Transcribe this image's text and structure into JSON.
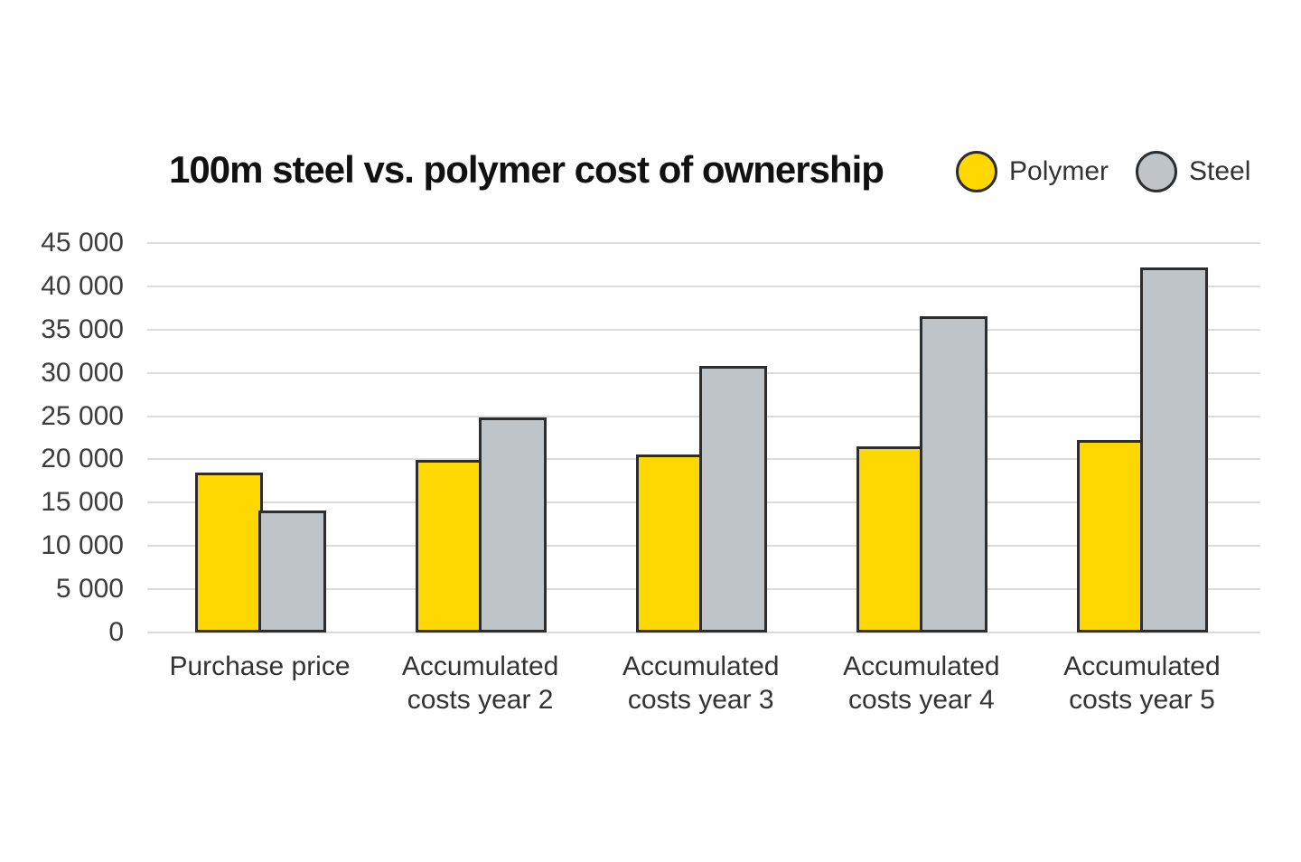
{
  "header": {
    "title": "100m steel vs. polymer cost of ownership"
  },
  "chart_data": {
    "type": "bar",
    "title": "100m steel vs. polymer cost of ownership",
    "categories": [
      "Purchase price",
      "Accumulated costs year 2",
      "Accumulated costs year 3",
      "Accumulated costs year 4",
      "Accumulated costs year 5"
    ],
    "series": [
      {
        "name": "Polymer",
        "color": "#ffd802",
        "values": [
          18500,
          19900,
          20600,
          21500,
          22200
        ]
      },
      {
        "name": "Steel",
        "color": "#bec4c7",
        "values": [
          14100,
          24900,
          30800,
          36500,
          42200
        ]
      }
    ],
    "ylim": [
      0,
      45000
    ],
    "ytick_step": 5000,
    "ytick_labels": [
      "0",
      "5 000",
      "10 000",
      "15 000",
      "20 000",
      "25 000",
      "30 000",
      "35 000",
      "40 000",
      "45 000"
    ],
    "xlabel": "",
    "ylabel": "",
    "grid": "horizontal",
    "legend_position": "top-right",
    "colors": {
      "bar_border": "#2d2d2d",
      "gridline": "#dcdcdc",
      "tick_text": "#3c3c3c",
      "title_text": "#111111",
      "background": "#ffffff"
    }
  }
}
